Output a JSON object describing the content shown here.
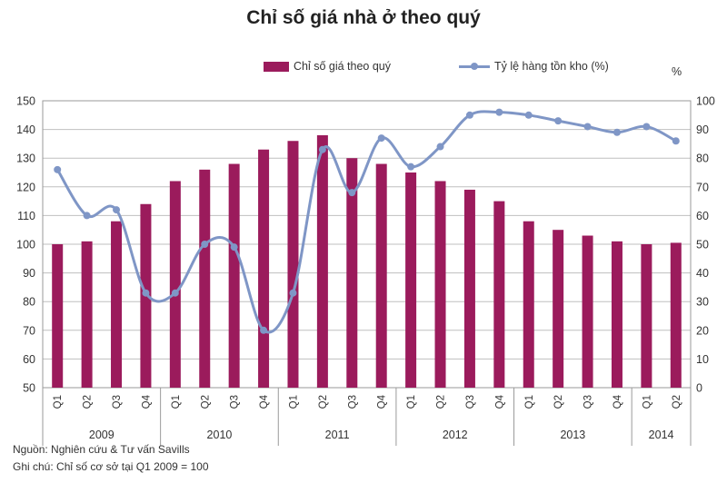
{
  "chart_data": {
    "type": "bar+line",
    "title": "Chỉ số giá nhà ở theo quý",
    "categories": [
      "Q1",
      "Q2",
      "Q3",
      "Q4",
      "Q1",
      "Q2",
      "Q3",
      "Q4",
      "Q1",
      "Q2",
      "Q3",
      "Q4",
      "Q1",
      "Q2",
      "Q3",
      "Q4",
      "Q1",
      "Q2",
      "Q3",
      "Q4",
      "Q1",
      "Q2"
    ],
    "year_groups": [
      {
        "label": "2009",
        "count": 4
      },
      {
        "label": "2010",
        "count": 4
      },
      {
        "label": "2011",
        "count": 4
      },
      {
        "label": "2012",
        "count": 4
      },
      {
        "label": "2013",
        "count": 4
      },
      {
        "label": "2014",
        "count": 2
      }
    ],
    "series": [
      {
        "name": "Chỉ số giá theo quý",
        "type": "bar",
        "axis": "left",
        "color": "#9b1b5c",
        "values": [
          100,
          101,
          108,
          114,
          122,
          126,
          128,
          133,
          136,
          138,
          130,
          128,
          125,
          122,
          119,
          115,
          108,
          105,
          103,
          101,
          100,
          100.5
        ]
      },
      {
        "name": "Tỷ lệ hàng tồn kho (%)",
        "type": "line",
        "axis": "right",
        "color": "#7f96c6",
        "values": [
          76,
          60,
          62,
          33,
          33,
          50,
          49,
          20,
          33,
          83,
          68,
          87,
          77,
          84,
          95,
          96,
          95,
          93,
          91,
          89,
          91,
          86
        ]
      }
    ],
    "y_left": {
      "min": 50,
      "max": 150,
      "ticks": [
        50,
        60,
        70,
        80,
        90,
        100,
        110,
        120,
        130,
        140,
        150
      ]
    },
    "y_right": {
      "min": 0,
      "max": 100,
      "ticks": [
        0,
        10,
        20,
        30,
        40,
        50,
        60,
        70,
        80,
        90,
        100
      ],
      "unit_label": "%"
    },
    "grid": true,
    "legend_position": "top"
  },
  "notes": {
    "source": "Nguồn: Nghiên cứu & Tư vấn Savills",
    "remark": "Ghi chú: Chỉ số cơ sở tại Q1 2009 = 100"
  }
}
